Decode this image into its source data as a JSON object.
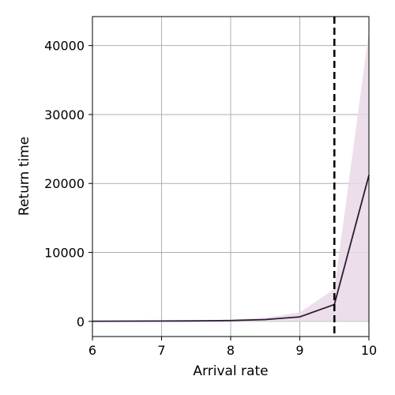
{
  "chart_data": {
    "type": "line",
    "xlabel": "Arrival rate",
    "ylabel": "Return time",
    "xlim": [
      6,
      10
    ],
    "ylim": [
      -2200,
      44200
    ],
    "xticks": [
      6,
      7,
      8,
      9,
      10
    ],
    "yticks": [
      0,
      10000,
      20000,
      30000,
      40000
    ],
    "grid": true,
    "series": [
      {
        "x": [
          6,
          6.5,
          7,
          7.5,
          8,
          8.5,
          9,
          9.5,
          10
        ],
        "y": [
          20,
          30,
          45,
          70,
          120,
          260,
          650,
          2450,
          21200
        ],
        "lower": [
          0,
          0,
          0,
          0,
          0,
          0,
          0,
          0,
          0
        ],
        "upper": [
          40,
          60,
          90,
          140,
          260,
          520,
          1300,
          4700,
          42000
        ],
        "color": "#2d1b33",
        "band_color": "#e9d8e6"
      }
    ],
    "vline": {
      "x": 9.5,
      "style": "dashed",
      "color": "#000000"
    }
  }
}
